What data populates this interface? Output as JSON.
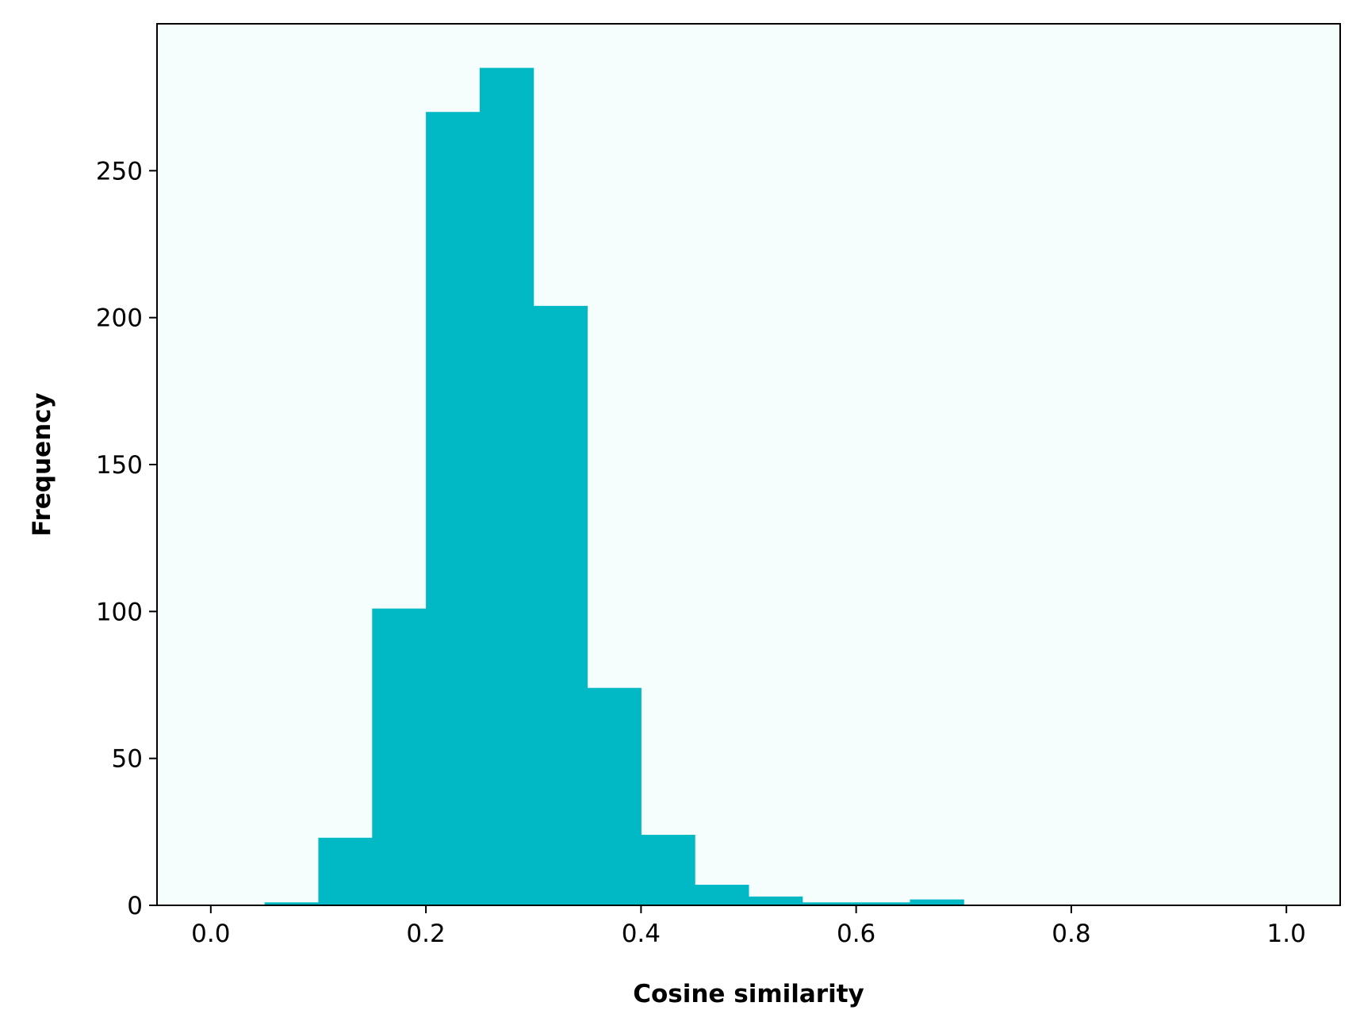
{
  "chart_data": {
    "type": "bar",
    "title": "",
    "xlabel": "Cosine similarity",
    "ylabel": "Frequency",
    "xlim": [
      -0.05,
      1.05
    ],
    "ylim": [
      0,
      300
    ],
    "grid": false,
    "xticks": [
      0.0,
      0.2,
      0.4,
      0.6,
      0.8,
      1.0
    ],
    "xtick_labels": [
      "0.0",
      "0.2",
      "0.4",
      "0.6",
      "0.8",
      "1.0"
    ],
    "yticks": [
      0,
      50,
      100,
      150,
      200,
      250
    ],
    "ytick_labels": [
      "0",
      "50",
      "100",
      "150",
      "200",
      "250"
    ],
    "bin_edges": [
      0.0,
      0.05,
      0.1,
      0.15,
      0.2,
      0.25,
      0.3,
      0.35,
      0.4,
      0.45,
      0.5,
      0.55,
      0.6,
      0.65,
      0.7,
      0.75,
      0.8,
      0.85,
      0.9,
      0.95,
      1.0
    ],
    "values": [
      0,
      1,
      23,
      101,
      270,
      285,
      204,
      74,
      24,
      7,
      3,
      1,
      1,
      2,
      0,
      0,
      0,
      0,
      0,
      0
    ],
    "colors": {
      "bar": "#00b9c4",
      "plot_background": "#f5fdfd",
      "axis": "#000000"
    }
  }
}
